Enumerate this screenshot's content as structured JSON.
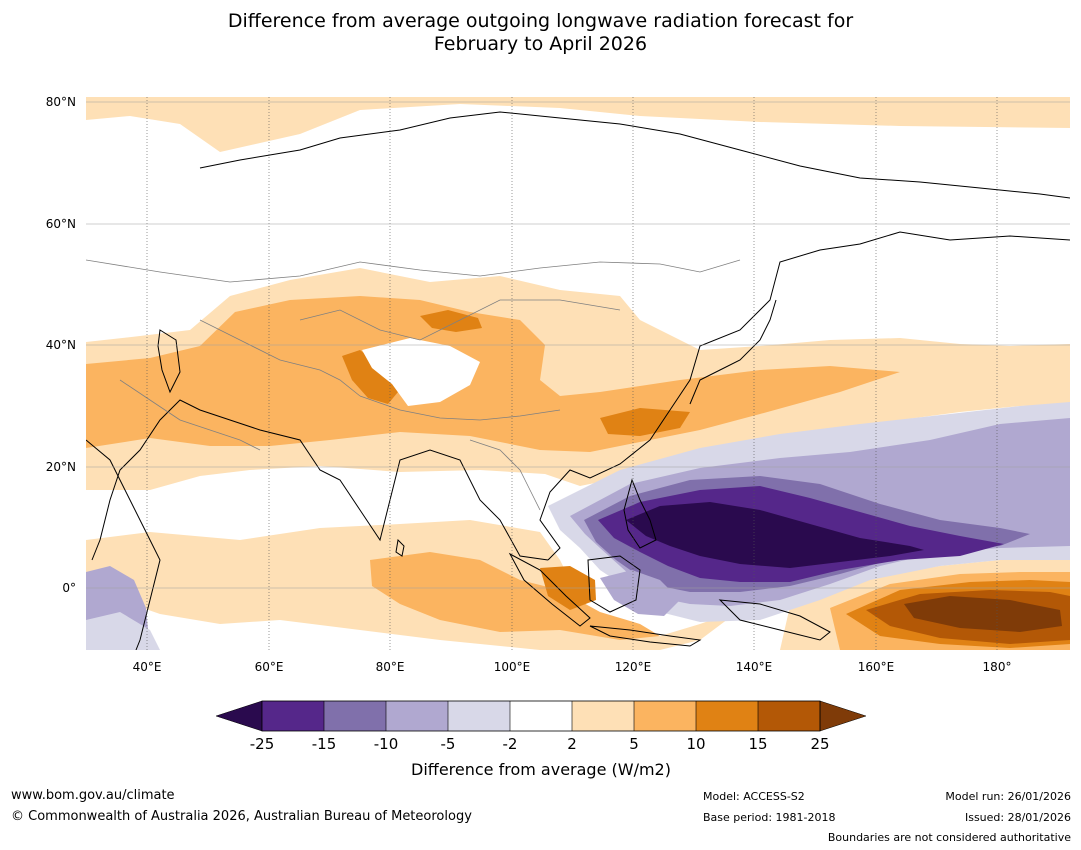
{
  "title": {
    "line1": "Difference from average outgoing longwave radiation forecast for",
    "line2": "February to April 2026"
  },
  "map": {
    "lat_labels": [
      "80°N",
      "60°N",
      "40°N",
      "20°N",
      "0°"
    ],
    "lon_labels": [
      "40°E",
      "60°E",
      "80°E",
      "100°E",
      "120°E",
      "140°E",
      "160°E",
      "180°"
    ]
  },
  "colorbar": {
    "title": "Difference from average (W/m2)",
    "ticks": [
      "-25",
      "-15",
      "-10",
      "-5",
      "-2",
      "2",
      "5",
      "10",
      "15",
      "25"
    ],
    "colors": {
      "below_min": "#2a0a4e",
      "b1": "#55278a",
      "b2": "#8070ab",
      "b3": "#b0a8d0",
      "b4": "#d8d8e8",
      "b5": "#ffffff",
      "b6": "#fee0b6",
      "b7": "#fbb460",
      "b8": "#e08214",
      "b9": "#b35806",
      "above_max": "#7f3b08"
    }
  },
  "footer": {
    "url": "www.bom.gov.au/climate",
    "copyright": "© Commonwealth of Australia 2026, Australian Bureau of Meteorology",
    "model": "Model: ACCESS-S2",
    "base_period": "Base period: 1981-2018",
    "model_run": "Model run: 26/01/2026",
    "issued": "Issued: 28/01/2026",
    "disclaimer": "Boundaries are not considered authoritative"
  }
}
